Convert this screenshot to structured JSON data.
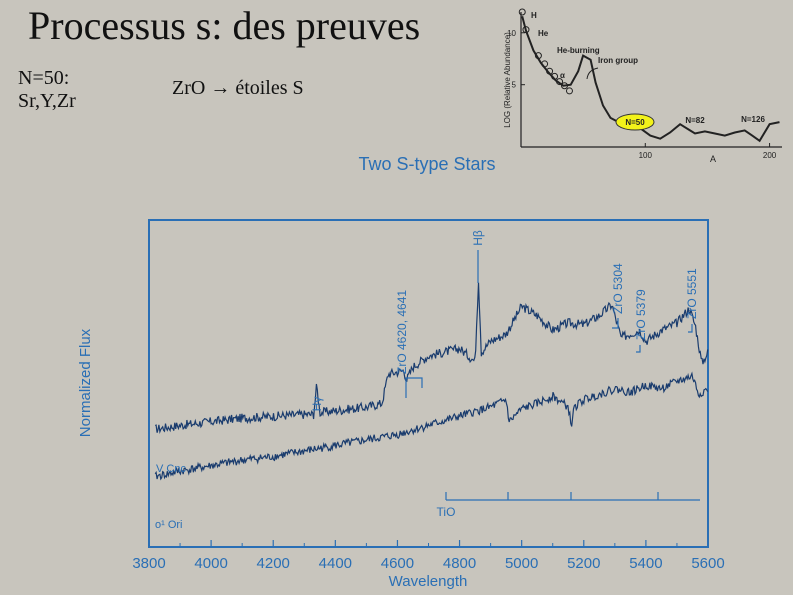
{
  "slide": {
    "title": "Processus s: des preuves",
    "note_n50": [
      "N=50:",
      "Sr,Y,Zr"
    ],
    "note_zro": "ZrO → étoiles S"
  },
  "colors": {
    "background": "#c8c5bd",
    "plot_ink": "#2a6fb5",
    "spectrum_line": "#1a3c6e",
    "highlight": "#f2f21a"
  },
  "chart_data": [
    {
      "id": "abundance",
      "type": "line",
      "title": "",
      "xlabel": "A",
      "ylabel": "LOG (Relative Abundance)",
      "xlim": [
        0,
        210
      ],
      "ylim": [
        -1,
        12
      ],
      "x_ticks": [
        "100",
        "200"
      ],
      "y_ticks": [
        "5",
        "10"
      ],
      "series": [
        {
          "x": [
            1,
            4,
            10,
            16,
            22,
            28,
            34,
            40,
            46,
            50,
            56,
            60,
            66,
            72,
            80,
            88,
            96,
            104,
            112,
            120,
            128,
            136,
            140,
            148,
            156,
            164,
            172,
            180,
            186,
            192,
            200,
            208
          ],
          "y": [
            11.6,
            10.2,
            8.3,
            7.1,
            6.2,
            5.4,
            4.9,
            5.0,
            6.3,
            7.8,
            7.4,
            5.2,
            3.0,
            1.8,
            1.3,
            1.5,
            0.8,
            0.1,
            -0.2,
            0.4,
            1.2,
            0.6,
            0.3,
            0.5,
            0.3,
            0.1,
            0.4,
            0.6,
            0.1,
            -0.4,
            1.2,
            1.4
          ]
        }
      ],
      "points": [
        {
          "x": 1,
          "y": 12
        },
        {
          "x": 4,
          "y": 10.3
        },
        {
          "x": 14,
          "y": 7.8
        },
        {
          "x": 19,
          "y": 7.0
        },
        {
          "x": 23,
          "y": 6.3
        },
        {
          "x": 27,
          "y": 5.8
        },
        {
          "x": 31,
          "y": 5.3
        },
        {
          "x": 35,
          "y": 4.9
        },
        {
          "x": 39,
          "y": 4.4
        }
      ],
      "annotations": [
        "H",
        "He",
        "He-burning",
        "Iron group",
        "α",
        "N=50",
        "N=82",
        "N=126"
      ]
    },
    {
      "id": "spectra",
      "type": "line",
      "title": "Two S-type Stars",
      "xlabel": "Wavelength",
      "ylabel": "Normalized Flux",
      "xlim": [
        3800,
        5600
      ],
      "x_ticks": [
        "3800",
        "4000",
        "4200",
        "4400",
        "4600",
        "4800",
        "5000",
        "5200",
        "5400",
        "5600"
      ],
      "series": [
        {
          "name": "V Cnc",
          "x": [
            3820,
            3900,
            4000,
            4100,
            4200,
            4300,
            4330,
            4340,
            4350,
            4400,
            4500,
            4550,
            4570,
            4620,
            4630,
            4650,
            4700,
            4800,
            4850,
            4861,
            4870,
            4900,
            4950,
            5000,
            5050,
            5100,
            5150,
            5200,
            5250,
            5290,
            5320,
            5380,
            5400,
            5450,
            5500,
            5540,
            5560,
            5580,
            5600
          ],
          "y": [
            0.18,
            0.2,
            0.22,
            0.24,
            0.25,
            0.26,
            0.26,
            0.42,
            0.27,
            0.28,
            0.3,
            0.32,
            0.48,
            0.5,
            0.45,
            0.52,
            0.58,
            0.62,
            0.55,
            1.0,
            0.6,
            0.66,
            0.7,
            0.85,
            0.8,
            0.72,
            0.76,
            0.75,
            0.8,
            0.86,
            0.68,
            0.72,
            0.66,
            0.72,
            0.76,
            0.84,
            0.74,
            0.54,
            0.6
          ]
        },
        {
          "name": "o¹ Ori",
          "x": [
            3820,
            3900,
            4000,
            4100,
            4200,
            4300,
            4400,
            4500,
            4600,
            4700,
            4800,
            4900,
            4950,
            4960,
            5000,
            5050,
            5100,
            5150,
            5160,
            5170,
            5200,
            5250,
            5300,
            5350,
            5400,
            5450,
            5500,
            5550,
            5570,
            5600
          ],
          "y": [
            -0.08,
            -0.05,
            -0.02,
            0.01,
            0.03,
            0.06,
            0.09,
            0.12,
            0.15,
            0.2,
            0.25,
            0.3,
            0.34,
            0.22,
            0.29,
            0.32,
            0.36,
            0.3,
            0.2,
            0.3,
            0.34,
            0.37,
            0.4,
            0.38,
            0.42,
            0.4,
            0.44,
            0.47,
            0.37,
            0.4
          ]
        }
      ],
      "annotations": [
        "Hγ",
        "Hβ",
        "ZrO 4620, 4641",
        "ZrO 5304",
        "ZrO 5379",
        "ZrO 5551",
        "TiO"
      ]
    }
  ]
}
